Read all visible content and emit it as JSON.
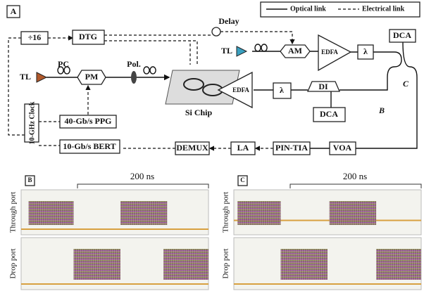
{
  "panel_a": {
    "label": "A",
    "legend": {
      "optical": "Optical link",
      "electrical": "Electrical link"
    },
    "nodes": {
      "delay": "Delay",
      "div16": "÷16",
      "dtg": "DTG",
      "tl_right": "TL",
      "am": "AM",
      "edfa_top": "EDFA",
      "lambda_top": "λ",
      "dca_top": "DCA",
      "tl_left": "TL",
      "pc": "PC",
      "pm": "PM",
      "pol": "Pol.",
      "si_chip": "Si Chip",
      "edfa_bottom": "EDFA",
      "lambda_bottom": "λ",
      "di": "DI",
      "dca_bottom": "DCA",
      "point_c": "C",
      "point_b": "B",
      "clock": "10-GHz Clock",
      "ppg": "40-Gb/s PPG",
      "bert": "10-Gb/s BERT",
      "demux": "DEMUX",
      "la": "LA",
      "pin_tia": "PIN-TIA",
      "voa": "VOA"
    }
  },
  "panel_b": {
    "label": "B",
    "time_span": "200 ns",
    "through": "Through port",
    "drop": "Drop port"
  },
  "panel_c": {
    "label": "C",
    "time_span": "200 ns",
    "through": "Through port",
    "drop": "Drop port"
  }
}
